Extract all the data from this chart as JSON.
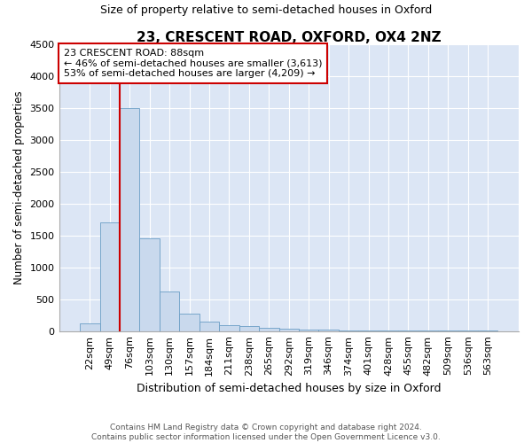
{
  "title": "23, CRESCENT ROAD, OXFORD, OX4 2NZ",
  "subtitle": "Size of property relative to semi-detached houses in Oxford",
  "xlabel": "Distribution of semi-detached houses by size in Oxford",
  "ylabel": "Number of semi-detached properties",
  "categories": [
    "22sqm",
    "49sqm",
    "76sqm",
    "103sqm",
    "130sqm",
    "157sqm",
    "184sqm",
    "211sqm",
    "238sqm",
    "265sqm",
    "292sqm",
    "319sqm",
    "346sqm",
    "374sqm",
    "401sqm",
    "428sqm",
    "455sqm",
    "482sqm",
    "509sqm",
    "536sqm",
    "563sqm"
  ],
  "values": [
    120,
    1700,
    3500,
    1450,
    620,
    270,
    145,
    90,
    75,
    55,
    40,
    30,
    20,
    15,
    10,
    8,
    6,
    5,
    4,
    3,
    3
  ],
  "bar_color": "#c9d9ed",
  "bar_edge_color": "#6a9ec5",
  "red_line_color": "#cc0000",
  "red_line_bin_index": 2,
  "annotation_text_line1": "23 CRESCENT ROAD: 88sqm",
  "annotation_text_line2": "← 46% of semi-detached houses are smaller (3,613)",
  "annotation_text_line3": "53% of semi-detached houses are larger (4,209) →",
  "annotation_box_color": "#ffffff",
  "annotation_box_edge": "#cc0000",
  "ylim": [
    0,
    4500
  ],
  "yticks": [
    0,
    500,
    1000,
    1500,
    2000,
    2500,
    3000,
    3500,
    4000,
    4500
  ],
  "plot_background": "#dce6f5",
  "footer_line1": "Contains HM Land Registry data © Crown copyright and database right 2024.",
  "footer_line2": "Contains public sector information licensed under the Open Government Licence v3.0.",
  "title_fontsize": 11,
  "subtitle_fontsize": 9,
  "xlabel_fontsize": 9,
  "ylabel_fontsize": 8.5,
  "tick_fontsize": 8,
  "annot_fontsize": 8
}
